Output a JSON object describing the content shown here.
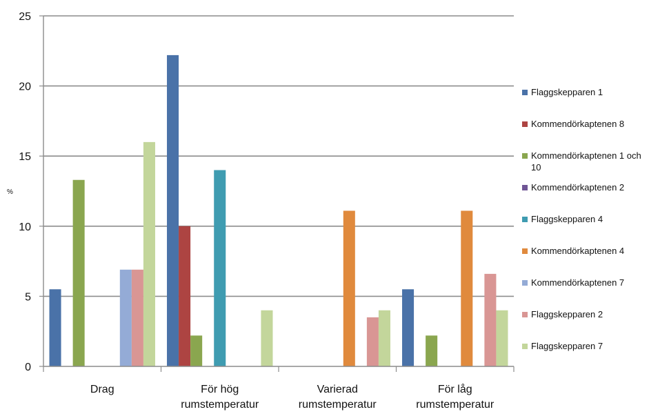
{
  "chart_data": {
    "type": "bar",
    "title": "",
    "xlabel": "",
    "ylabel": "%",
    "ylim": [
      0,
      25
    ],
    "yticks": [
      0,
      5,
      10,
      15,
      20,
      25
    ],
    "grid": true,
    "legend_position": "right",
    "categories": [
      [
        "Drag"
      ],
      [
        "För hög",
        "rumstemperatur"
      ],
      [
        "Varierad",
        "rumstemperatur"
      ],
      [
        "För låg",
        "rumstemperatur"
      ]
    ],
    "series": [
      {
        "name": "Flaggskepparen 1",
        "color": "#4a72a8",
        "values": [
          5.5,
          22.2,
          0,
          5.5
        ]
      },
      {
        "name": "Kommendörkaptenen 8",
        "color": "#ad4442",
        "values": [
          0,
          10,
          0,
          0
        ]
      },
      {
        "name": "Kommendörkaptenen 1 och 10",
        "color": "#8aa64f",
        "values": [
          13.3,
          2.2,
          0,
          2.2
        ]
      },
      {
        "name": "Kommendörkaptenen 2",
        "color": "#6f5595",
        "values": [
          0,
          0,
          0,
          0
        ]
      },
      {
        "name": "Flaggskepparen 4",
        "color": "#3f9cb1",
        "values": [
          0,
          14,
          0,
          0
        ]
      },
      {
        "name": "Kommendörkaptenen 4",
        "color": "#e08a3d",
        "values": [
          0,
          0,
          11.1,
          11.1
        ]
      },
      {
        "name": "Kommendörkaptenen 7",
        "color": "#94abd6",
        "values": [
          6.9,
          0,
          0,
          0
        ]
      },
      {
        "name": "Flaggskepparen 2",
        "color": "#d99694",
        "values": [
          6.9,
          0,
          3.5,
          6.6
        ]
      },
      {
        "name": "Flaggskepparen 7",
        "color": "#c3d69b",
        "values": [
          16,
          4,
          4,
          4
        ]
      }
    ]
  }
}
